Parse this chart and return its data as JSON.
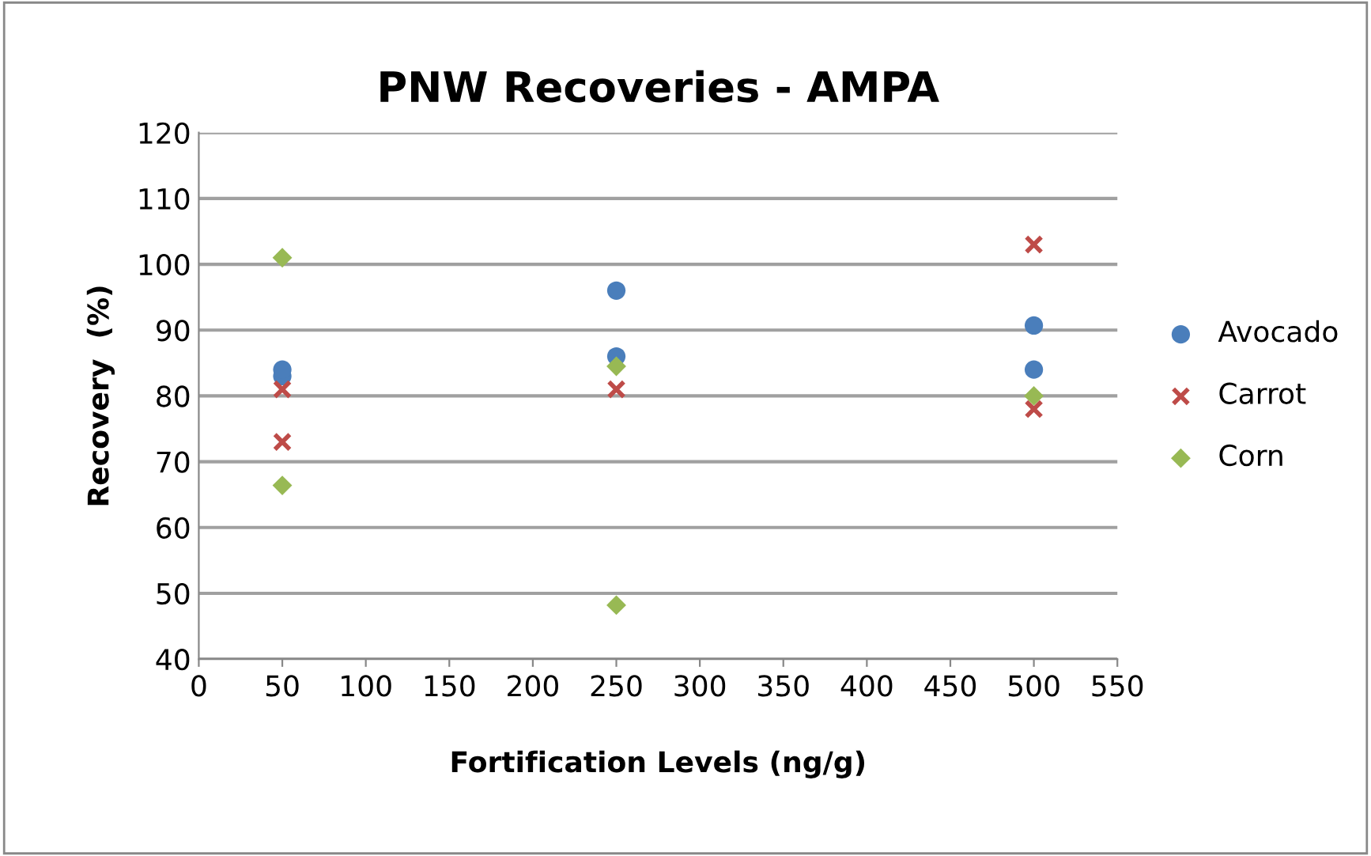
{
  "chart_data": {
    "type": "scatter",
    "title": "PNW Recoveries - AMPA",
    "xlabel": "Fortification Levels (ng/g)",
    "ylabel": "Recovery  (%)",
    "series": [
      {
        "name": "Avocado",
        "color": "#4a7ebb",
        "marker": "circle",
        "x": [
          50,
          50,
          250,
          250,
          500,
          500
        ],
        "values": [
          83,
          84,
          96,
          86,
          90.7,
          84
        ]
      },
      {
        "name": "Carrot",
        "color": "#be4b48",
        "marker": "cross",
        "x": [
          50,
          50,
          250,
          500,
          500
        ],
        "values": [
          81,
          73,
          81,
          103,
          78
        ]
      },
      {
        "name": "Corn",
        "color": "#98b954",
        "marker": "diamond",
        "x": [
          50,
          50,
          250,
          250,
          500
        ],
        "values": [
          101,
          66.4,
          84.5,
          48.2,
          80
        ]
      }
    ],
    "xlim": [
      0,
      550
    ],
    "xticks": [
      0,
      50,
      100,
      150,
      200,
      250,
      300,
      350,
      400,
      450,
      500,
      550
    ],
    "ylim": [
      40,
      120
    ],
    "yticks": [
      40,
      50,
      60,
      70,
      80,
      90,
      100,
      110,
      120
    ],
    "grid": "y",
    "legend": "right"
  }
}
